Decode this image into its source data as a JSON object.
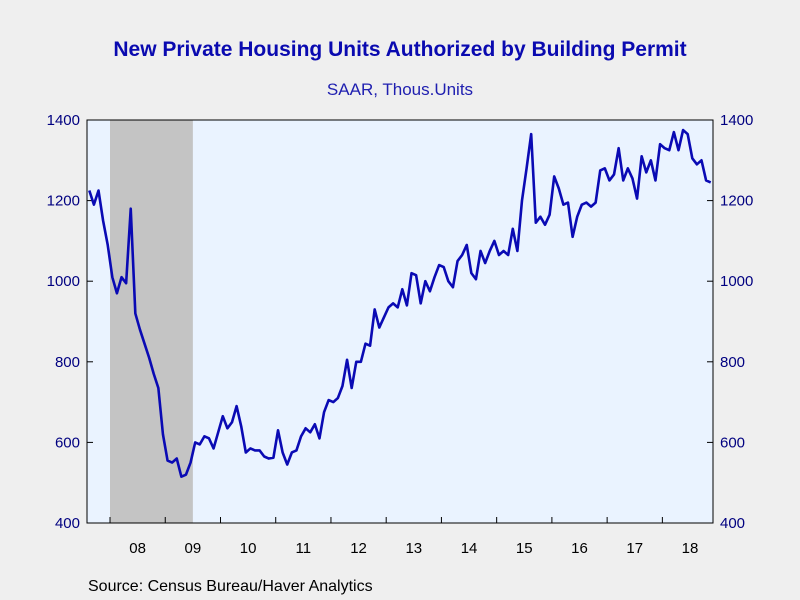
{
  "title": "New Private Housing Units Authorized by Building Permit",
  "subtitle": "SAAR, Thous.Units",
  "source": "Source:  Census Bureau/Haver Analytics",
  "colors": {
    "line": "#0a0ab4",
    "plot_bg": "#eaf3ff",
    "recession": "#c4c4c4",
    "page_bg": "#efefef"
  },
  "chart_data": {
    "type": "line",
    "title": "New Private Housing Units Authorized by Building Permit",
    "subtitle": "SAAR, Thous.Units",
    "x_start": "2007-08",
    "frequency": "monthly",
    "ylim": [
      400,
      1400
    ],
    "y_ticks": [
      400,
      600,
      800,
      1000,
      1200,
      1400
    ],
    "y_axes": "left-and-right",
    "x_tick_labels": [
      "08",
      "09",
      "10",
      "11",
      "12",
      "13",
      "14",
      "15",
      "16",
      "17",
      "18"
    ],
    "recession_shading": [
      "2008-01",
      "2009-06"
    ],
    "grid": false,
    "series": [
      {
        "values": [
          1225,
          1190,
          1225,
          1150,
          1090,
          1010,
          970,
          1010,
          995,
          1180,
          920,
          880,
          845,
          810,
          770,
          735,
          620,
          555,
          550,
          560,
          515,
          520,
          550,
          600,
          595,
          615,
          610,
          585,
          625,
          665,
          635,
          650,
          690,
          640,
          575,
          585,
          580,
          580,
          565,
          560,
          562,
          630,
          575,
          545,
          575,
          580,
          615,
          635,
          625,
          645,
          610,
          675,
          705,
          700,
          710,
          740,
          805,
          735,
          800,
          800,
          845,
          840,
          930,
          885,
          910,
          935,
          945,
          935,
          980,
          940,
          1020,
          1015,
          945,
          1000,
          975,
          1010,
          1040,
          1035,
          1000,
          985,
          1050,
          1065,
          1090,
          1020,
          1005,
          1075,
          1045,
          1075,
          1100,
          1065,
          1075,
          1065,
          1130,
          1075,
          1200,
          1280,
          1365,
          1145,
          1160,
          1140,
          1165,
          1260,
          1230,
          1190,
          1195,
          1110,
          1160,
          1190,
          1195,
          1185,
          1195,
          1275,
          1280,
          1250,
          1265,
          1330,
          1250,
          1280,
          1255,
          1205,
          1310,
          1270,
          1300,
          1250,
          1340,
          1330,
          1325,
          1370,
          1325,
          1375,
          1365,
          1305,
          1290,
          1300,
          1250,
          1245
        ]
      }
    ]
  }
}
